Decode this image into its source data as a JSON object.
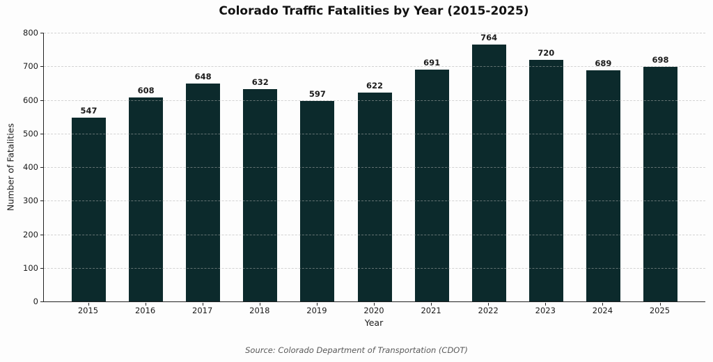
{
  "chart_data": {
    "type": "bar",
    "title": "Colorado Traffic Fatalities by Year (2015-2025)",
    "xlabel": "Year",
    "ylabel": "Number of Fatalities",
    "categories": [
      "2015",
      "2016",
      "2017",
      "2018",
      "2019",
      "2020",
      "2021",
      "2022",
      "2023",
      "2024",
      "2025"
    ],
    "values": [
      547,
      608,
      648,
      632,
      597,
      622,
      691,
      764,
      720,
      689,
      698
    ],
    "ylim": [
      0,
      800
    ],
    "y_ticks": [
      0,
      100,
      200,
      300,
      400,
      500,
      600,
      700,
      800
    ],
    "grid": "horizontal-dashed-over-bars",
    "legend": "none",
    "bar_color": "#0c2a2c",
    "value_labels": [
      547,
      608,
      648,
      632,
      597,
      622,
      691,
      764,
      720,
      689,
      698
    ]
  },
  "footer": {
    "source": "Source: Colorado Department of Transportation (CDOT)"
  },
  "colors": {
    "bar": "#0c2a2c",
    "axis": "#212121",
    "grid": "#c9c9c9",
    "title_text": "#111111",
    "tick_text": "#1a1a1a",
    "source_text": "#595959",
    "background": "#fdfdfd"
  }
}
